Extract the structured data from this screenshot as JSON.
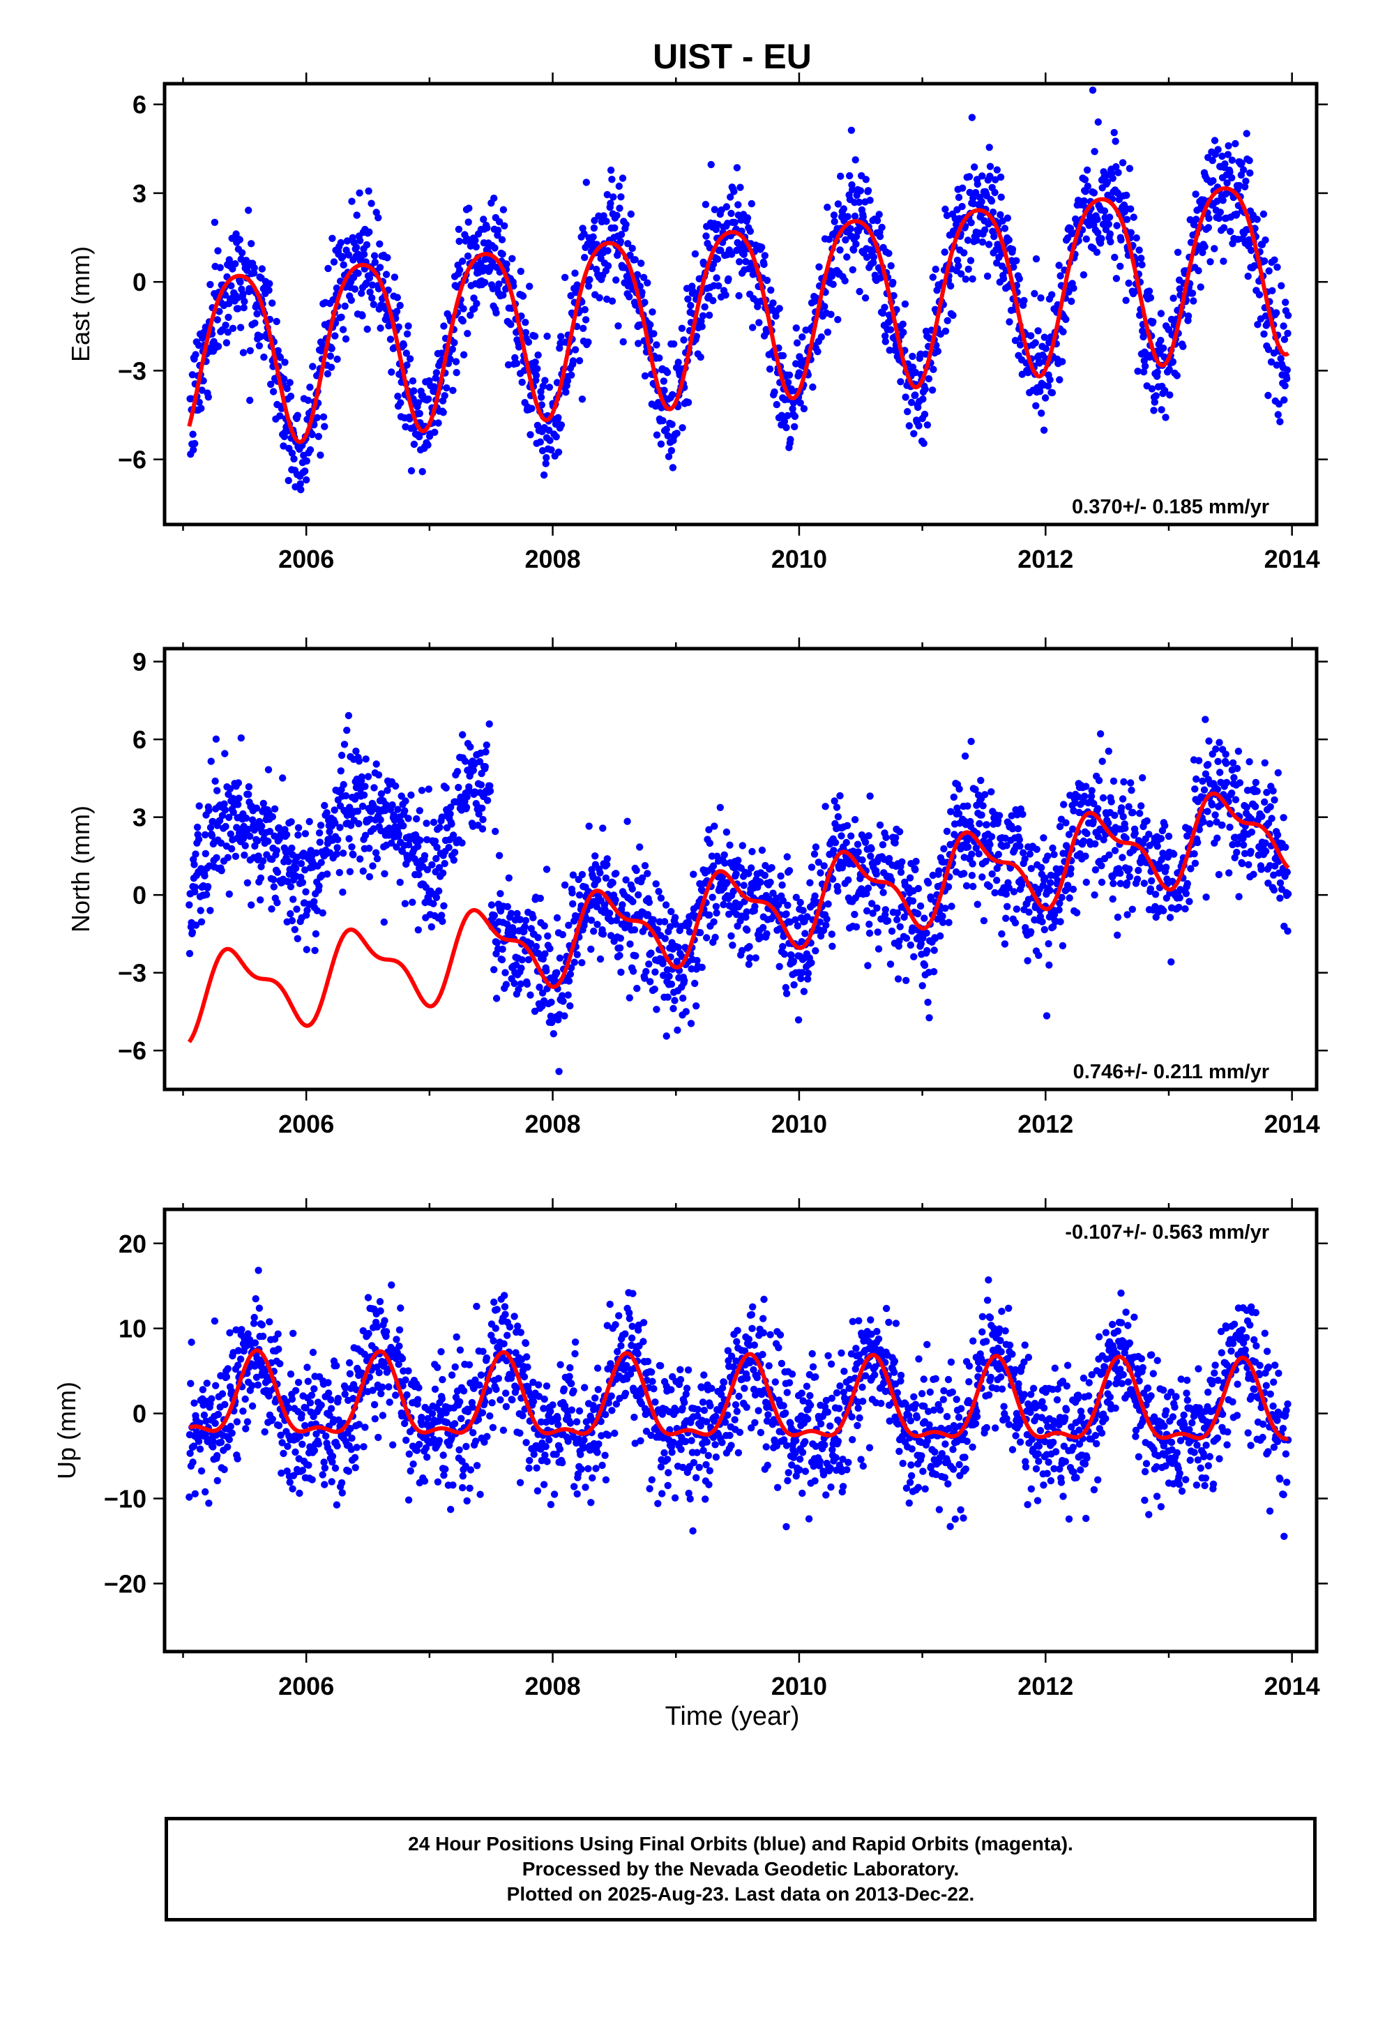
{
  "title": "UIST - EU",
  "xlabel": "Time (year)",
  "footer": {
    "line1": "24 Hour Positions Using Final Orbits (blue) and Rapid Orbits (magenta).",
    "line2": "Processed by the Nevada Geodetic Laboratory.",
    "line3": "Plotted on 2025-Aug-23. Last data on 2013-Dec-22."
  },
  "colors": {
    "points": "#0000ff",
    "model": "#ff0000",
    "axis": "#000000"
  },
  "chart_data": [
    {
      "type": "scatter",
      "ylabel": "East (mm)",
      "rate_text": "0.370+/- 0.185 mm/yr",
      "rate_position": "bottom-right",
      "xlim": [
        2004.85,
        2014.2
      ],
      "ylim": [
        -8.2,
        6.7
      ],
      "yticks": [
        -6,
        -3,
        0,
        3,
        6
      ],
      "xticks": [
        2006,
        2008,
        2010,
        2012,
        2014
      ],
      "grid": false,
      "data_range": [
        2005.05,
        2013.97
      ],
      "model": {
        "offset": -0.75,
        "trend": 0.37,
        "t0": 2009.5,
        "annual_amp": 2.9,
        "annual_phase_peak": 0.45,
        "semiannual_amp": 0.45,
        "semiannual_phase_peak": 0.2
      },
      "scatter_noise_sd": 1.0,
      "series": [
        {
          "name": "Final Orbits",
          "kind": "points"
        },
        {
          "name": "model",
          "kind": "line"
        }
      ]
    },
    {
      "type": "scatter",
      "ylabel": "North (mm)",
      "rate_text": "0.746+/- 0.211 mm/yr",
      "rate_position": "bottom-right",
      "xlim": [
        2004.85,
        2014.2
      ],
      "ylim": [
        -7.5,
        9.5
      ],
      "yticks": [
        -6,
        -3,
        0,
        3,
        6,
        9
      ],
      "xticks": [
        2006,
        2008,
        2010,
        2012,
        2014
      ],
      "grid": false,
      "data_range": [
        2005.05,
        2013.97
      ],
      "data_offset_before_2007_5": 5.2,
      "model": {
        "offset": -0.6,
        "trend": 0.75,
        "t0": 2009.5,
        "annual_amp": 1.4,
        "annual_phase_peak": 0.45,
        "semiannual_amp": 0.6,
        "semiannual_phase_peak": 0.3
      },
      "scatter_noise_sd": 1.2,
      "series": [
        {
          "name": "Final Orbits",
          "kind": "points"
        },
        {
          "name": "model",
          "kind": "line"
        }
      ]
    },
    {
      "type": "scatter",
      "ylabel": "Up (mm)",
      "rate_text": "-0.107+/- 0.563 mm/yr",
      "rate_position": "top-right",
      "xlim": [
        2004.85,
        2014.2
      ],
      "ylim": [
        -28,
        24
      ],
      "yticks": [
        -20,
        -10,
        0,
        10,
        20
      ],
      "xticks": [
        2006,
        2008,
        2010,
        2012,
        2014
      ],
      "grid": false,
      "data_range": [
        2005.05,
        2013.97
      ],
      "model": {
        "offset": 0.7,
        "trend": -0.107,
        "t0": 2009.5,
        "annual_amp": 4.5,
        "annual_phase_peak": 0.6,
        "semiannual_amp": 1.8,
        "semiannual_phase_peak": 0.1
      },
      "scatter_noise_sd": 3.8,
      "series": [
        {
          "name": "Final Orbits",
          "kind": "points"
        },
        {
          "name": "model",
          "kind": "line"
        }
      ]
    }
  ]
}
